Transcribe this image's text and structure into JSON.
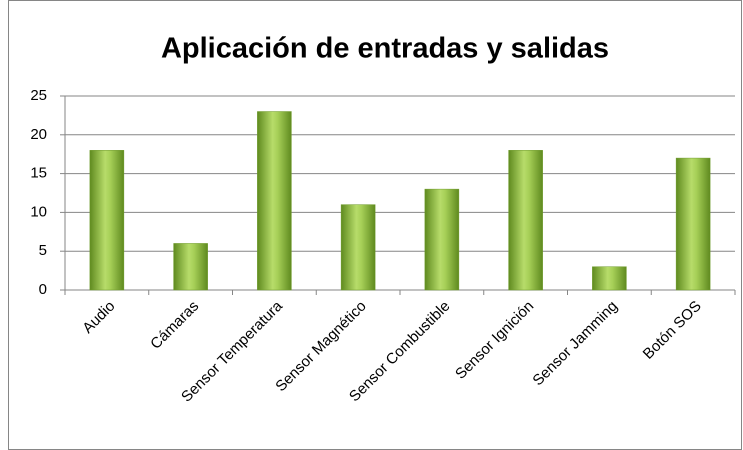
{
  "chart_data": {
    "type": "bar",
    "title": "Aplicación de entradas y salidas",
    "categories": [
      "Audio",
      "Cámaras",
      "Sensor Temperatura",
      "Sensor Magnético",
      "Sensor Combustible",
      "Sensor Ignición",
      "Sensor Jamming",
      "Botón SOS"
    ],
    "values": [
      18,
      6,
      23,
      11,
      13,
      18,
      3,
      17
    ],
    "color": "#92c13c",
    "ylim": [
      0,
      25
    ],
    "yticks": [
      0,
      5,
      10,
      15,
      20,
      25
    ],
    "grid": true
  }
}
